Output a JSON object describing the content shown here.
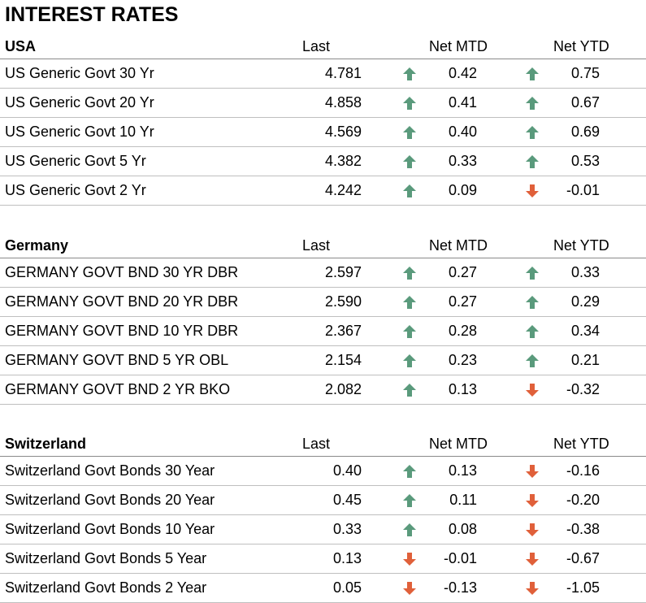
{
  "title": "INTEREST RATES",
  "colors": {
    "up": "#5a9a7c",
    "down": "#e0603a"
  },
  "sections": [
    {
      "name": "USA",
      "cols": {
        "last": "Last",
        "mtd": "Net MTD",
        "ytd": "Net YTD"
      },
      "rows": [
        {
          "name": "US Generic Govt 30 Yr",
          "last": "4.781",
          "mtd": "0.42",
          "mtd_dir": "up",
          "ytd": "0.75",
          "ytd_dir": "up"
        },
        {
          "name": "US Generic Govt 20 Yr",
          "last": "4.858",
          "mtd": "0.41",
          "mtd_dir": "up",
          "ytd": "0.67",
          "ytd_dir": "up"
        },
        {
          "name": "US Generic Govt 10 Yr",
          "last": "4.569",
          "mtd": "0.40",
          "mtd_dir": "up",
          "ytd": "0.69",
          "ytd_dir": "up"
        },
        {
          "name": "US Generic Govt 5 Yr",
          "last": "4.382",
          "mtd": "0.33",
          "mtd_dir": "up",
          "ytd": "0.53",
          "ytd_dir": "up"
        },
        {
          "name": "US Generic Govt 2 Yr",
          "last": "4.242",
          "mtd": "0.09",
          "mtd_dir": "up",
          "ytd": "-0.01",
          "ytd_dir": "down"
        }
      ]
    },
    {
      "name": "Germany",
      "cols": {
        "last": "Last",
        "mtd": "Net MTD",
        "ytd": "Net YTD"
      },
      "rows": [
        {
          "name": "GERMANY GOVT BND 30 YR DBR",
          "last": "2.597",
          "mtd": "0.27",
          "mtd_dir": "up",
          "ytd": "0.33",
          "ytd_dir": "up"
        },
        {
          "name": "GERMANY GOVT BND 20 YR DBR",
          "last": "2.590",
          "mtd": "0.27",
          "mtd_dir": "up",
          "ytd": "0.29",
          "ytd_dir": "up"
        },
        {
          "name": "GERMANY GOVT BND 10 YR DBR",
          "last": "2.367",
          "mtd": "0.28",
          "mtd_dir": "up",
          "ytd": "0.34",
          "ytd_dir": "up"
        },
        {
          "name": "GERMANY GOVT BND 5 YR OBL",
          "last": "2.154",
          "mtd": "0.23",
          "mtd_dir": "up",
          "ytd": "0.21",
          "ytd_dir": "up"
        },
        {
          "name": "GERMANY GOVT BND 2 YR BKO",
          "last": "2.082",
          "mtd": "0.13",
          "mtd_dir": "up",
          "ytd": "-0.32",
          "ytd_dir": "down"
        }
      ]
    },
    {
      "name": "Switzerland",
      "cols": {
        "last": "Last",
        "mtd": "Net MTD",
        "ytd": "Net YTD"
      },
      "rows": [
        {
          "name": "Switzerland Govt Bonds 30 Year",
          "last": "0.40",
          "mtd": "0.13",
          "mtd_dir": "up",
          "ytd": "-0.16",
          "ytd_dir": "down"
        },
        {
          "name": "Switzerland Govt Bonds 20 Year",
          "last": "0.45",
          "mtd": "0.11",
          "mtd_dir": "up",
          "ytd": "-0.20",
          "ytd_dir": "down"
        },
        {
          "name": "Switzerland Govt Bonds 10 Year",
          "last": "0.33",
          "mtd": "0.08",
          "mtd_dir": "up",
          "ytd": "-0.38",
          "ytd_dir": "down"
        },
        {
          "name": "Switzerland Govt Bonds 5 Year",
          "last": "0.13",
          "mtd": "-0.01",
          "mtd_dir": "down",
          "ytd": "-0.67",
          "ytd_dir": "down"
        },
        {
          "name": "Switzerland Govt Bonds 2 Year",
          "last": "0.05",
          "mtd": "-0.13",
          "mtd_dir": "down",
          "ytd": "-1.05",
          "ytd_dir": "down"
        }
      ]
    }
  ]
}
